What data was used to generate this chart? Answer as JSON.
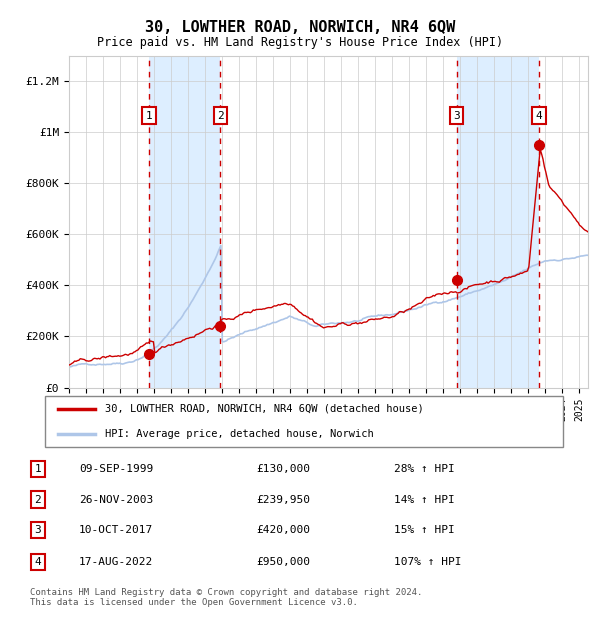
{
  "title": "30, LOWTHER ROAD, NORWICH, NR4 6QW",
  "subtitle": "Price paid vs. HM Land Registry's House Price Index (HPI)",
  "ylabel_ticks": [
    "£0",
    "£200K",
    "£400K",
    "£600K",
    "£800K",
    "£1M",
    "£1.2M"
  ],
  "ytick_values": [
    0,
    200000,
    400000,
    600000,
    800000,
    1000000,
    1200000
  ],
  "ylim": [
    0,
    1300000
  ],
  "sale_dates_num": [
    1999.69,
    2003.9,
    2017.78,
    2022.63
  ],
  "sale_prices": [
    130000,
    239950,
    420000,
    950000
  ],
  "sale_labels": [
    "1",
    "2",
    "3",
    "4"
  ],
  "sale_date_strs": [
    "09-SEP-1999",
    "26-NOV-2003",
    "10-OCT-2017",
    "17-AUG-2022"
  ],
  "sale_price_strs": [
    "£130,000",
    "£239,950",
    "£420,000",
    "£950,000"
  ],
  "sale_hpi_strs": [
    "28% ↑ HPI",
    "14% ↑ HPI",
    "15% ↑ HPI",
    "107% ↑ HPI"
  ],
  "hpi_line_color": "#aec6e8",
  "price_line_color": "#cc0000",
  "dot_color": "#cc0000",
  "vline_color": "#cc0000",
  "shade_color": "#ddeeff",
  "grid_color": "#cccccc",
  "background_color": "#ffffff",
  "footer_text": "Contains HM Land Registry data © Crown copyright and database right 2024.\nThis data is licensed under the Open Government Licence v3.0.",
  "legend_line1": "30, LOWTHER ROAD, NORWICH, NR4 6QW (detached house)",
  "legend_line2": "HPI: Average price, detached house, Norwich",
  "xmin": 1995.0,
  "xmax": 2025.5
}
